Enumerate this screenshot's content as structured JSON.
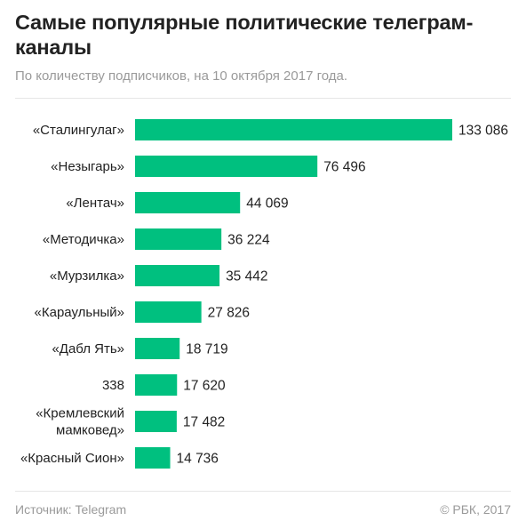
{
  "header": {
    "title": "Самые популярные политические телеграм-каналы",
    "subtitle": "По количеству подписчиков, на 10 октября 2017 года."
  },
  "footer": {
    "source": "Источник: Telegram",
    "copyright": "© РБК, 2017"
  },
  "colors": {
    "bar": "#00c07f",
    "text": "#222222",
    "muted": "#9a9a9a"
  },
  "chart_data": {
    "type": "bar",
    "orientation": "horizontal",
    "categories": [
      [
        "«Сталингулаг»"
      ],
      [
        "«Незыгарь»"
      ],
      [
        "«Лентач»"
      ],
      [
        "«Методичка»"
      ],
      [
        "«Мурзилка»"
      ],
      [
        "«Караульный»"
      ],
      [
        "«Дабл Ять»"
      ],
      [
        "338"
      ],
      [
        "«Кремлевский",
        "мамковед»"
      ],
      [
        "«Красный Сион»"
      ]
    ],
    "values": [
      133086,
      76496,
      44069,
      36224,
      35442,
      27826,
      18719,
      17620,
      17482,
      14736
    ],
    "value_labels": [
      "133 086",
      "76 496",
      "44 069",
      "36 224",
      "35 442",
      "27 826",
      "18 719",
      "17 620",
      "17 482",
      "14 736"
    ],
    "xlim": [
      0,
      133086
    ],
    "grid": false,
    "legend": "none"
  }
}
